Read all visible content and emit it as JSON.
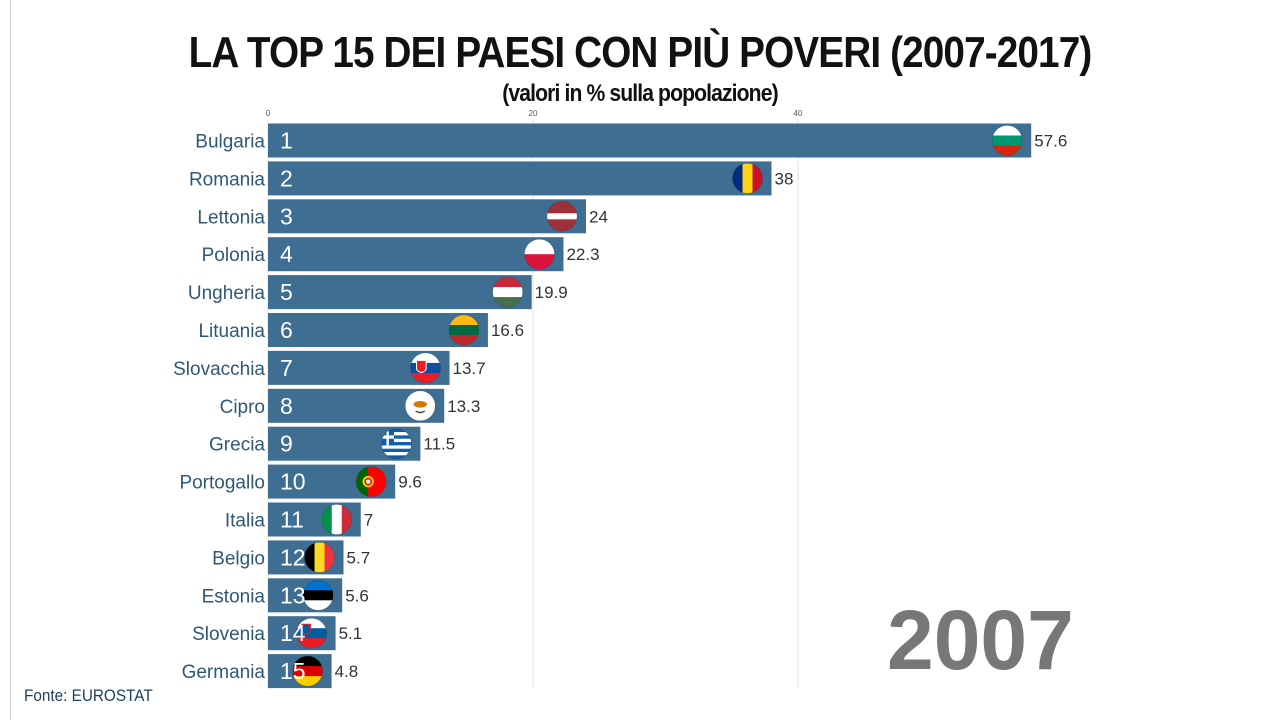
{
  "chart_data": {
    "type": "bar",
    "orientation": "horizontal",
    "title": "LA TOP 15 DEI PAESI CON PIÙ POVERI (2007-2017)",
    "subtitle": "(valori in % sulla popolazione)",
    "xlim": [
      0,
      60
    ],
    "x_ticks": [
      0,
      20,
      40
    ],
    "grid": true,
    "bar_color": "#3f6e93",
    "categories": [
      "Bulgaria",
      "Romania",
      "Lettonia",
      "Polonia",
      "Ungheria",
      "Lituania",
      "Slovacchia",
      "Cipro",
      "Grecia",
      "Portogallo",
      "Italia",
      "Belgio",
      "Estonia",
      "Slovenia",
      "Germania"
    ],
    "ranks": [
      "1",
      "2",
      "3",
      "4",
      "5",
      "6",
      "7",
      "8",
      "9",
      "10",
      "11",
      "12",
      "13",
      "14",
      "15"
    ],
    "values": [
      57.6,
      38,
      24,
      22.3,
      19.9,
      16.6,
      13.7,
      13.3,
      11.5,
      9.6,
      7,
      5.7,
      5.6,
      5.1,
      4.8
    ],
    "value_labels": [
      "57.6",
      "38",
      "24",
      "22.3",
      "19.9",
      "16.6",
      "13.7",
      "13.3",
      "11.5",
      "9.6",
      "7",
      "5.7",
      "5.6",
      "5.1",
      "4.8"
    ],
    "flag_icons": [
      "bulgaria-flag-icon",
      "romania-flag-icon",
      "latvia-flag-icon",
      "poland-flag-icon",
      "hungary-flag-icon",
      "lithuania-flag-icon",
      "slovakia-flag-icon",
      "cyprus-flag-icon",
      "greece-flag-icon",
      "portugal-flag-icon",
      "italy-flag-icon",
      "belgium-flag-icon",
      "estonia-flag-icon",
      "slovenia-flag-icon",
      "germany-flag-icon"
    ],
    "year": "2007",
    "source": "Fonte: EUROSTAT"
  }
}
